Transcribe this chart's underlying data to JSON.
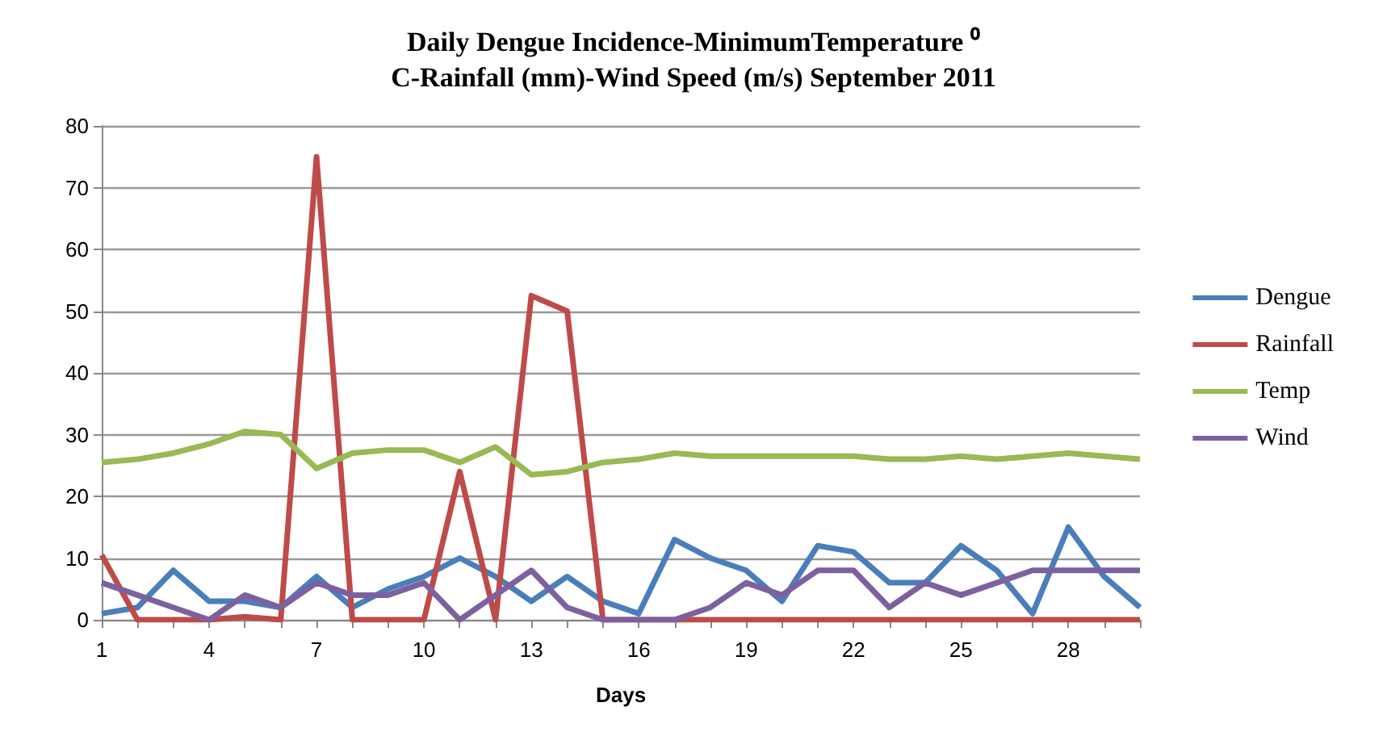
{
  "chart_data": {
    "type": "line",
    "title": "Daily Dengue Incidence-MinimumTemperature ⁰C-Rainfall (mm)-Wind Speed (m/s) September 2011",
    "xlabel": "Days",
    "categories": [
      "1",
      null,
      null,
      "4",
      null,
      null,
      "7",
      null,
      null,
      "10",
      null,
      null,
      "13",
      null,
      null,
      "16",
      null,
      null,
      "19",
      null,
      null,
      "22",
      null,
      null,
      "25",
      null,
      null,
      "28",
      null,
      null
    ],
    "series": [
      {
        "name": "Dengue",
        "color": "#4a7ebb",
        "values": [
          1,
          2,
          8,
          3,
          3,
          2,
          7,
          2,
          5,
          7,
          10,
          7,
          3,
          7,
          3,
          1,
          13,
          10,
          8,
          3,
          12,
          11,
          6,
          6,
          12,
          8,
          1,
          15,
          7,
          2
        ]
      },
      {
        "name": "Rainfall",
        "color": "#be4b48",
        "values": [
          10.5,
          0,
          0,
          0,
          0.5,
          0,
          75,
          0,
          0,
          0,
          24,
          0,
          52.5,
          50,
          0,
          0,
          0,
          0,
          0,
          0,
          0,
          0,
          0,
          0,
          0,
          0,
          0,
          0,
          0,
          0
        ]
      },
      {
        "name": "Temp",
        "color": "#98b954",
        "values": [
          25.5,
          26,
          27,
          28.5,
          30.5,
          30,
          24.5,
          27,
          27.5,
          27.5,
          25.5,
          28,
          23.5,
          24,
          25.5,
          26,
          27,
          26.5,
          26.5,
          26.5,
          26.5,
          26.5,
          26,
          26,
          26.5,
          26,
          26.5,
          27,
          26.5,
          26
        ]
      },
      {
        "name": "Wind",
        "color": "#7d60a0",
        "values": [
          6,
          4,
          2,
          0,
          4,
          2,
          6,
          4,
          4,
          6,
          0,
          4,
          8,
          2,
          0,
          0,
          0,
          2,
          6,
          4,
          8,
          8,
          2,
          6,
          4,
          6,
          8,
          8,
          8,
          8
        ]
      }
    ],
    "ylim": [
      0,
      80
    ],
    "yticks": [
      0,
      10,
      20,
      30,
      40,
      50,
      60,
      70,
      80
    ],
    "grid": "y",
    "legend": "right",
    "marker": "none",
    "line_style": "solid"
  }
}
